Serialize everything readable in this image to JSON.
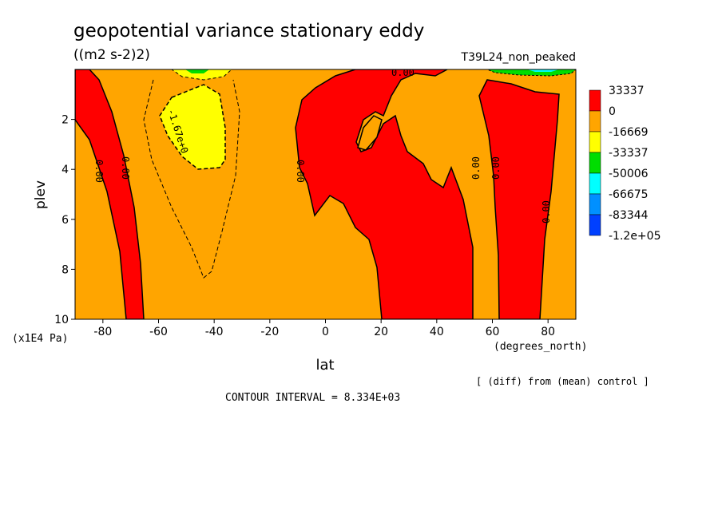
{
  "chart_data": {
    "type": "heatmap",
    "title": "geopotential variance stationary eddy",
    "units": "((m2 s-2)2)",
    "experiment": "T39L24_non_peaked",
    "xlabel": "lat",
    "x_units": "(degrees_north)",
    "ylabel": "plev",
    "y_units": "(x1E4 Pa)",
    "xlim": [
      -90,
      90
    ],
    "ylim": [
      10,
      0
    ],
    "x_ticks": [
      -80,
      -60,
      -40,
      -20,
      0,
      20,
      40,
      60,
      80
    ],
    "y_ticks": [
      2,
      4,
      6,
      8,
      10
    ],
    "legend": {
      "placement": "right",
      "levels": [
        "33337",
        "0",
        "-16669",
        "-33337",
        "-50006",
        "-66675",
        "-83344",
        "-1.2e+05"
      ],
      "colors": [
        "#ff0000",
        "#ffa500",
        "#ffff00",
        "#00dd00",
        "#00ffff",
        "#0090ff",
        "#0040ff"
      ]
    },
    "contour_labels": [
      {
        "text": "0.00",
        "lat": -78,
        "plev": 4.2
      },
      {
        "text": "0.00",
        "lat": -70,
        "plev": 4.0
      },
      {
        "text": "-1.67e+0",
        "lat": -47,
        "plev": 2.8
      },
      {
        "text": "0.00",
        "lat": -8,
        "plev": 4.2
      },
      {
        "text": "0.00",
        "lat": 26,
        "plev": 0.2
      },
      {
        "text": "0.00",
        "lat": 53,
        "plev": 4.0
      },
      {
        "text": "0.00",
        "lat": 60,
        "plev": 4.0
      },
      {
        "text": "0.00",
        "lat": 78,
        "plev": 6.0
      }
    ],
    "contour_interval_text": "CONTOUR INTERVAL = 8.334E+03",
    "footnote": "[ (diff) from (mean) control ]"
  }
}
